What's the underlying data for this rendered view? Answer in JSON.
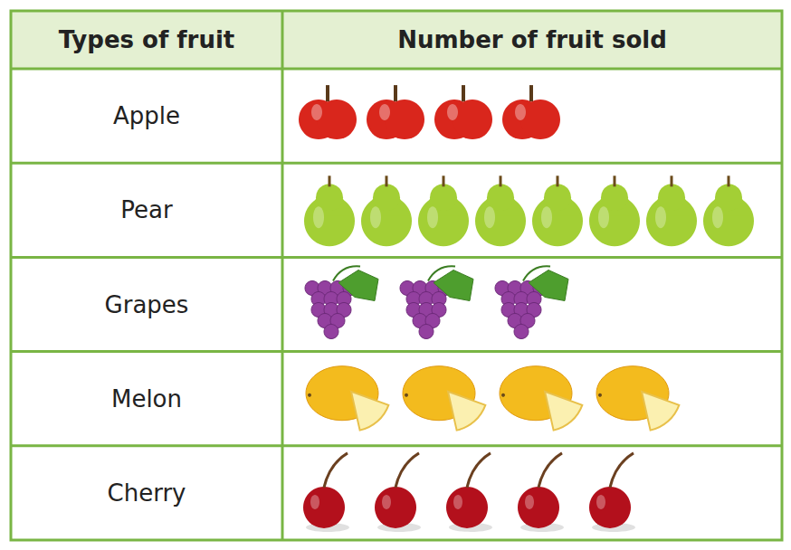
{
  "chart_data": {
    "type": "pictogram",
    "ylabel": "Types of fruit",
    "xlabel": "Number of fruit sold",
    "categories": [
      "Apple",
      "Pear",
      "Grapes",
      "Melon",
      "Cherry"
    ],
    "values": [
      4,
      8,
      3,
      4,
      5
    ],
    "colors": [
      "#d9261c",
      "#a3cf35",
      "#93409f",
      "#f3bb1e",
      "#b3101c"
    ]
  }
}
